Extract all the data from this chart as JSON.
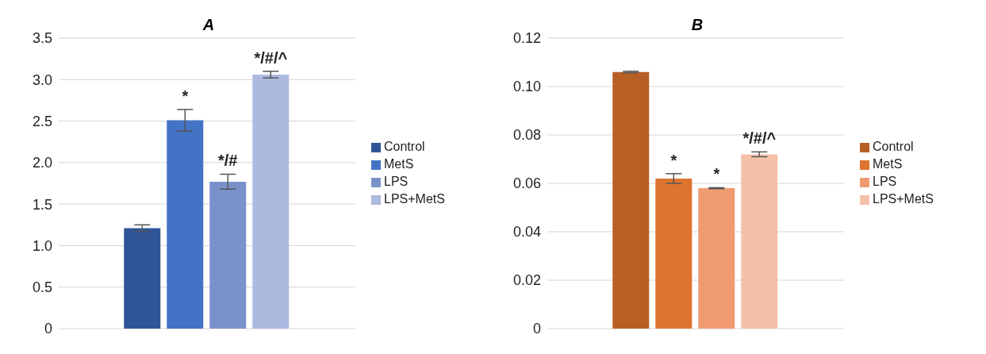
{
  "chart_data": [
    {
      "type": "bar",
      "title": "A",
      "categories": [
        null
      ],
      "series": [
        {
          "name": "Control",
          "color": "#2f5597",
          "values": [
            1.21
          ],
          "errors": [
            0.04
          ]
        },
        {
          "name": "MetS",
          "color": "#4472c4",
          "values": [
            2.51
          ],
          "errors": [
            0.13
          ],
          "value_labels": [
            "*"
          ]
        },
        {
          "name": "LPS",
          "color": "#7a92cc",
          "values": [
            1.77
          ],
          "errors": [
            0.09
          ],
          "value_labels": [
            "*/#"
          ]
        },
        {
          "name": "LPS+MetS",
          "color": "#adb9df",
          "values": [
            3.06
          ],
          "errors": [
            0.04
          ],
          "value_labels": [
            "*/#/^"
          ]
        }
      ],
      "ylim": [
        0,
        3.5
      ],
      "yticks": [
        {
          "value": 0,
          "label": "0"
        },
        {
          "value": 0.5,
          "label": "0.5"
        },
        {
          "value": 1,
          "label": "1.0"
        },
        {
          "value": 1.5,
          "label": "1.5"
        },
        {
          "value": 2,
          "label": "2.0"
        },
        {
          "value": 2.5,
          "label": "2.5"
        },
        {
          "value": 3,
          "label": "3.0"
        },
        {
          "value": 3.5,
          "label": "3.5"
        }
      ],
      "grid": "y",
      "legend": "right",
      "tick_labels": "y"
    },
    {
      "type": "bar",
      "title": "B",
      "categories": [
        null
      ],
      "series": [
        {
          "name": "Control",
          "color": "#b85f26",
          "values": [
            0.106
          ],
          "errors": [
            0.0003
          ]
        },
        {
          "name": "MetS",
          "color": "#dd7430",
          "values": [
            0.062
          ],
          "errors": [
            0.002
          ],
          "value_labels": [
            "*"
          ]
        },
        {
          "name": "LPS",
          "color": "#ef9a70",
          "values": [
            0.058
          ],
          "errors": [
            0.0002
          ],
          "value_labels": [
            "*"
          ]
        },
        {
          "name": "LPS+MetS",
          "color": "#f4c0a8",
          "values": [
            0.072
          ],
          "errors": [
            0.001
          ],
          "value_labels": [
            "*/#/^"
          ]
        }
      ],
      "ylim": [
        0,
        0.12
      ],
      "yticks": [
        {
          "value": 0,
          "label": "0"
        },
        {
          "value": 0.02,
          "label": "0.02"
        },
        {
          "value": 0.04,
          "label": "0.04"
        },
        {
          "value": 0.06,
          "label": "0.06"
        },
        {
          "value": 0.08,
          "label": "0.08"
        },
        {
          "value": 0.1,
          "label": "0.10"
        },
        {
          "value": 0.12,
          "label": "0.12"
        }
      ],
      "grid": "y",
      "legend": "right",
      "tick_labels": "y"
    }
  ]
}
